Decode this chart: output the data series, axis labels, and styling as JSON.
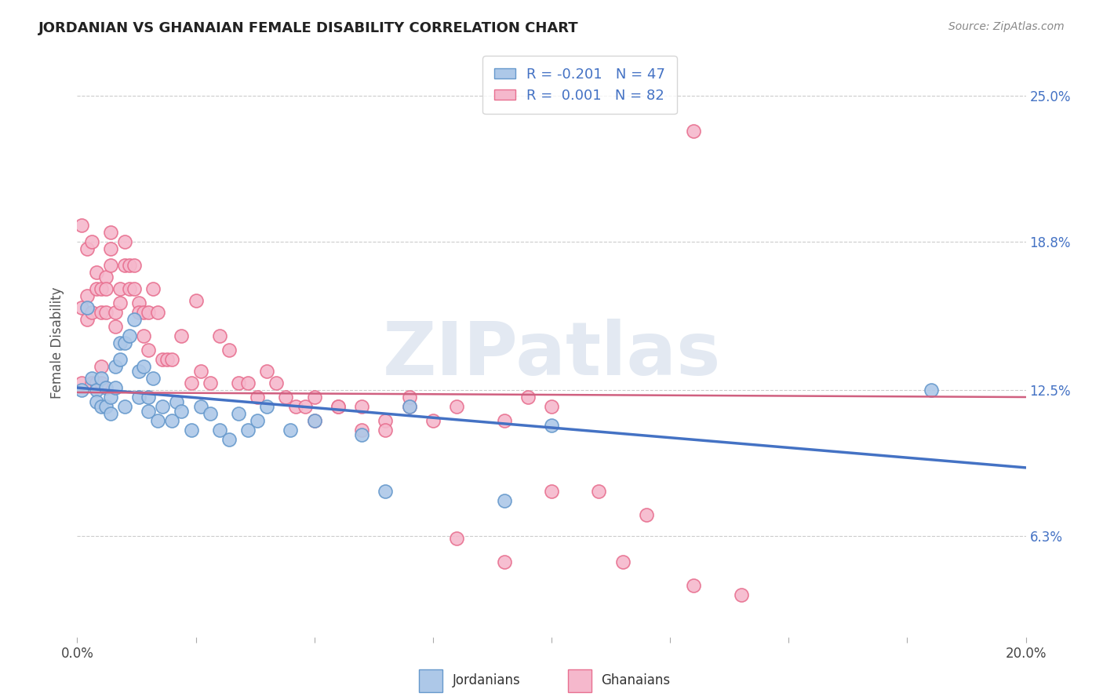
{
  "title": "JORDANIAN VS GHANAIAN FEMALE DISABILITY CORRELATION CHART",
  "source": "Source: ZipAtlas.com",
  "ylabel": "Female Disability",
  "yticks": [
    0.063,
    0.125,
    0.188,
    0.25
  ],
  "ytick_labels": [
    "6.3%",
    "12.5%",
    "18.8%",
    "25.0%"
  ],
  "xlim": [
    0.0,
    0.2
  ],
  "ylim": [
    0.02,
    0.27
  ],
  "jordan_color": "#adc8e8",
  "jordan_edge": "#6699cc",
  "ghana_color": "#f5b8cc",
  "ghana_edge": "#e87090",
  "trend_jordan_color": "#4472c4",
  "trend_ghana_color": "#d06080",
  "legend_text_color": "#4472c4",
  "watermark": "ZIPatlas",
  "jordan_R": -0.201,
  "jordan_N": 47,
  "ghana_R": 0.001,
  "ghana_N": 82,
  "jordan_x": [
    0.001,
    0.002,
    0.003,
    0.004,
    0.004,
    0.005,
    0.005,
    0.006,
    0.006,
    0.007,
    0.007,
    0.008,
    0.008,
    0.009,
    0.009,
    0.01,
    0.01,
    0.011,
    0.012,
    0.013,
    0.013,
    0.014,
    0.015,
    0.015,
    0.016,
    0.017,
    0.018,
    0.02,
    0.021,
    0.022,
    0.024,
    0.026,
    0.028,
    0.03,
    0.032,
    0.034,
    0.036,
    0.038,
    0.04,
    0.045,
    0.05,
    0.06,
    0.065,
    0.07,
    0.09,
    0.1,
    0.18
  ],
  "jordan_y": [
    0.125,
    0.16,
    0.13,
    0.125,
    0.12,
    0.13,
    0.118,
    0.126,
    0.118,
    0.122,
    0.115,
    0.135,
    0.126,
    0.145,
    0.138,
    0.118,
    0.145,
    0.148,
    0.155,
    0.133,
    0.122,
    0.135,
    0.122,
    0.116,
    0.13,
    0.112,
    0.118,
    0.112,
    0.12,
    0.116,
    0.108,
    0.118,
    0.115,
    0.108,
    0.104,
    0.115,
    0.108,
    0.112,
    0.118,
    0.108,
    0.112,
    0.106,
    0.082,
    0.118,
    0.078,
    0.11,
    0.125
  ],
  "ghana_x": [
    0.001,
    0.001,
    0.001,
    0.002,
    0.002,
    0.002,
    0.003,
    0.003,
    0.003,
    0.004,
    0.004,
    0.004,
    0.005,
    0.005,
    0.005,
    0.005,
    0.006,
    0.006,
    0.006,
    0.007,
    0.007,
    0.007,
    0.008,
    0.008,
    0.009,
    0.009,
    0.01,
    0.01,
    0.011,
    0.011,
    0.012,
    0.012,
    0.013,
    0.013,
    0.014,
    0.014,
    0.015,
    0.015,
    0.016,
    0.017,
    0.018,
    0.019,
    0.02,
    0.022,
    0.024,
    0.025,
    0.026,
    0.028,
    0.03,
    0.032,
    0.034,
    0.036,
    0.038,
    0.04,
    0.042,
    0.044,
    0.046,
    0.048,
    0.05,
    0.055,
    0.06,
    0.065,
    0.07,
    0.075,
    0.08,
    0.09,
    0.095,
    0.1,
    0.11,
    0.115,
    0.12,
    0.13,
    0.14,
    0.1,
    0.05,
    0.055,
    0.06,
    0.065,
    0.07,
    0.08,
    0.09,
    0.13
  ],
  "ghana_y": [
    0.128,
    0.16,
    0.195,
    0.155,
    0.165,
    0.185,
    0.128,
    0.158,
    0.188,
    0.168,
    0.175,
    0.128,
    0.135,
    0.158,
    0.168,
    0.128,
    0.173,
    0.168,
    0.158,
    0.192,
    0.185,
    0.178,
    0.158,
    0.152,
    0.168,
    0.162,
    0.188,
    0.178,
    0.178,
    0.168,
    0.178,
    0.168,
    0.162,
    0.158,
    0.148,
    0.158,
    0.158,
    0.142,
    0.168,
    0.158,
    0.138,
    0.138,
    0.138,
    0.148,
    0.128,
    0.163,
    0.133,
    0.128,
    0.148,
    0.142,
    0.128,
    0.128,
    0.122,
    0.133,
    0.128,
    0.122,
    0.118,
    0.118,
    0.122,
    0.118,
    0.118,
    0.112,
    0.118,
    0.112,
    0.118,
    0.112,
    0.122,
    0.118,
    0.082,
    0.052,
    0.072,
    0.042,
    0.038,
    0.082,
    0.112,
    0.118,
    0.108,
    0.108,
    0.122,
    0.062,
    0.052,
    0.235
  ]
}
